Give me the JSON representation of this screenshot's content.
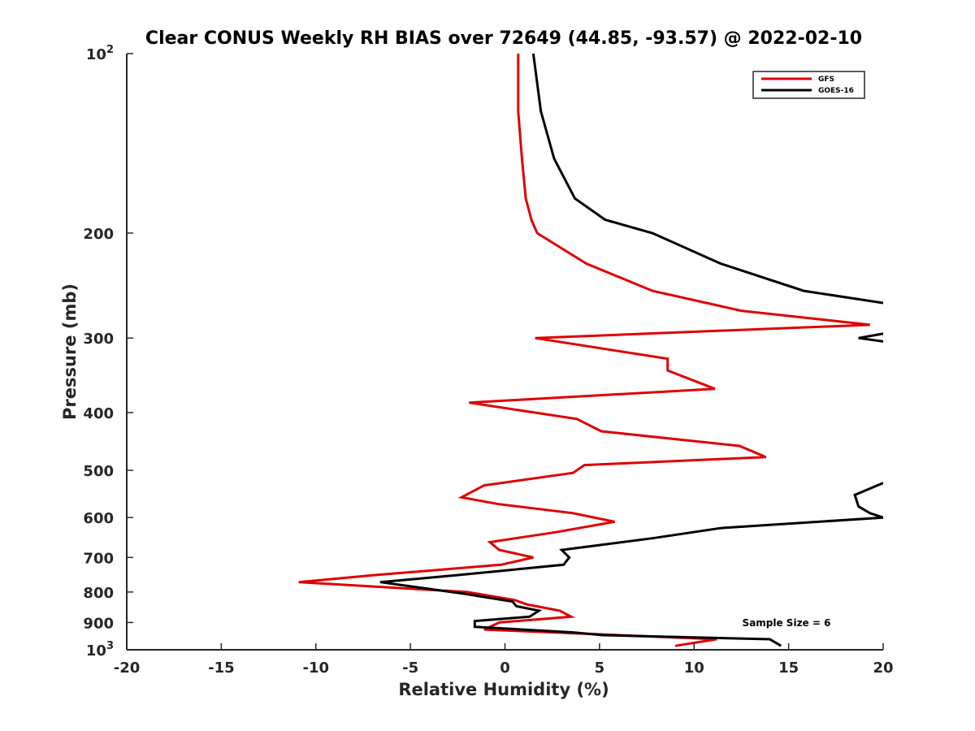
{
  "chart_data": {
    "type": "line",
    "title": "Clear CONUS Weekly RH BIAS over 72649 (44.85, -93.57) @ 2022-02-10",
    "xlabel": "Relative Humidity (%)",
    "ylabel": "Pressure (mb)",
    "xlim": [
      -20,
      20
    ],
    "ylim": [
      100,
      1000
    ],
    "y_scale": "log",
    "y_reversed": true,
    "x_ticks": [
      "-20",
      "-15",
      "-10",
      "-5",
      "0",
      "5",
      "10",
      "15",
      "20"
    ],
    "y_ticks": [
      {
        "value": 100,
        "base": "10",
        "sup": "2"
      },
      {
        "value": 200,
        "base": "200",
        "sup": ""
      },
      {
        "value": 300,
        "base": "300",
        "sup": ""
      },
      {
        "value": 400,
        "base": "400",
        "sup": ""
      },
      {
        "value": 500,
        "base": "500",
        "sup": ""
      },
      {
        "value": 600,
        "base": "600",
        "sup": ""
      },
      {
        "value": 700,
        "base": "700",
        "sup": ""
      },
      {
        "value": 800,
        "base": "800",
        "sup": ""
      },
      {
        "value": 900,
        "base": "900",
        "sup": ""
      },
      {
        "value": 1000,
        "base": "10",
        "sup": "3"
      }
    ],
    "grid": false,
    "legend_position": "top-right",
    "series": [
      {
        "name": "GFS",
        "color": "#e00000",
        "points": [
          [
            0.7,
            100
          ],
          [
            0.7,
            125
          ],
          [
            0.9,
            150
          ],
          [
            1.1,
            175
          ],
          [
            1.4,
            190
          ],
          [
            1.7,
            200
          ],
          [
            4.3,
            225
          ],
          [
            7.8,
            250
          ],
          [
            12.5,
            270
          ],
          [
            19.3,
            285
          ],
          [
            1.6,
            300
          ],
          [
            8.6,
            325
          ],
          [
            8.6,
            340
          ],
          [
            11.1,
            365
          ],
          [
            -1.9,
            385
          ],
          [
            3.8,
            410
          ],
          [
            5.1,
            430
          ],
          [
            12.4,
            455
          ],
          [
            13.8,
            475
          ],
          [
            4.2,
            490
          ],
          [
            3.6,
            505
          ],
          [
            -1.1,
            530
          ],
          [
            -2.3,
            555
          ],
          [
            -0.3,
            570
          ],
          [
            3.6,
            590
          ],
          [
            5.8,
            610
          ],
          [
            2.7,
            635
          ],
          [
            -0.8,
            660
          ],
          [
            -0.3,
            680
          ],
          [
            1.5,
            700
          ],
          [
            -0.2,
            720
          ],
          [
            -7.0,
            750
          ],
          [
            -10.9,
            770
          ],
          [
            -2.0,
            800
          ],
          [
            0.5,
            825
          ],
          [
            1.2,
            840
          ],
          [
            2.9,
            860
          ],
          [
            3.5,
            880
          ],
          [
            -0.3,
            900
          ],
          [
            -1.1,
            925
          ],
          [
            11.2,
            960
          ],
          [
            9.0,
            985
          ]
        ]
      },
      {
        "name": "GOES-16",
        "color": "#000000",
        "segments": [
          [
            [
              1.5,
              100
            ],
            [
              1.9,
              125
            ],
            [
              2.6,
              150
            ],
            [
              3.7,
              175
            ],
            [
              5.3,
              190
            ],
            [
              7.8,
              200
            ],
            [
              11.4,
              225
            ],
            [
              15.8,
              250
            ],
            [
              20.0,
              262
            ]
          ],
          [
            [
              20.0,
              295
            ],
            [
              18.7,
              300
            ],
            [
              20.0,
              304
            ]
          ],
          [
            [
              20.0,
              525
            ],
            [
              18.5,
              550
            ],
            [
              18.7,
              575
            ],
            [
              19.3,
              590
            ],
            [
              20.0,
              600
            ],
            [
              11.4,
              625
            ],
            [
              7.8,
              650
            ],
            [
              3.0,
              680
            ],
            [
              3.4,
              700
            ],
            [
              3.1,
              720
            ],
            [
              -2.6,
              750
            ],
            [
              -6.6,
              770
            ],
            [
              -2.2,
              805
            ],
            [
              0.4,
              830
            ],
            [
              0.6,
              845
            ],
            [
              1.8,
              860
            ],
            [
              1.3,
              880
            ],
            [
              -1.6,
              895
            ],
            [
              -1.6,
              915
            ],
            [
              3.6,
              935
            ],
            [
              5.2,
              945
            ],
            [
              14.0,
              960
            ],
            [
              14.6,
              985
            ]
          ]
        ]
      }
    ],
    "annotation": "Sample Size = 6"
  }
}
